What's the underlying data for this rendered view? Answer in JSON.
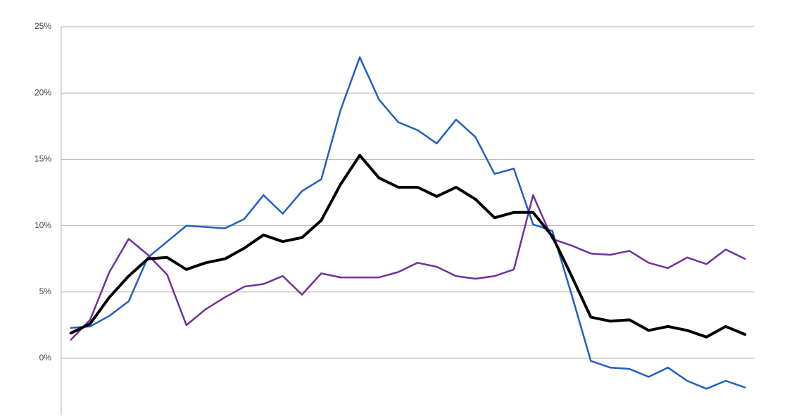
{
  "chart_data": {
    "type": "line",
    "categories": [
      null,
      null,
      null,
      null,
      null,
      null,
      null,
      null,
      null,
      null,
      null,
      null,
      null,
      null,
      null,
      null,
      null,
      null,
      null,
      null,
      null,
      null,
      null,
      null,
      null,
      null,
      null,
      null,
      null,
      null,
      null,
      null,
      null,
      null,
      null,
      null
    ],
    "ylim": [
      -4.3,
      25
    ],
    "yticks": [
      {
        "value": 0,
        "label": "0%"
      },
      {
        "value": 5,
        "label": "5%"
      },
      {
        "value": 10,
        "label": "10%"
      },
      {
        "value": 15,
        "label": "15%"
      },
      {
        "value": 20,
        "label": "20%"
      },
      {
        "value": 25,
        "label": "25%"
      }
    ],
    "grid": true,
    "series": [
      {
        "color": "#1f5fc4",
        "values": [
          2.3,
          2.4,
          3.2,
          4.3,
          7.6,
          8.8,
          10.0,
          9.9,
          9.8,
          10.5,
          12.3,
          10.9,
          12.6,
          13.5,
          18.7,
          22.7,
          19.5,
          17.8,
          17.2,
          16.2,
          18.0,
          16.7,
          13.9,
          14.3,
          10.1,
          9.6,
          4.8,
          -0.2,
          -0.7,
          -0.8,
          -1.4,
          -0.7,
          -1.7,
          -2.3,
          -1.7,
          -2.2
        ]
      },
      {
        "color": "#7030a0",
        "values": [
          1.4,
          2.9,
          6.5,
          9.0,
          7.8,
          6.3,
          2.5,
          3.7,
          4.6,
          5.4,
          5.6,
          6.2,
          4.8,
          6.4,
          6.1,
          6.1,
          6.1,
          6.5,
          7.2,
          6.9,
          6.2,
          6.0,
          6.2,
          6.7,
          12.3,
          9.0,
          8.5,
          7.9,
          7.8,
          8.1,
          7.2,
          6.8,
          7.6,
          7.1,
          8.2,
          7.5
        ]
      },
      {
        "color": "#000000",
        "values": [
          1.9,
          2.6,
          4.6,
          6.2,
          7.5,
          7.6,
          6.7,
          7.2,
          7.5,
          8.3,
          9.3,
          8.8,
          9.1,
          10.4,
          13.1,
          15.3,
          13.6,
          12.9,
          12.9,
          12.2,
          12.9,
          12.0,
          10.6,
          11.0,
          11.0,
          9.2,
          6.2,
          3.1,
          2.8,
          2.9,
          2.1,
          2.4,
          2.1,
          1.6,
          2.4,
          1.8
        ]
      }
    ]
  }
}
